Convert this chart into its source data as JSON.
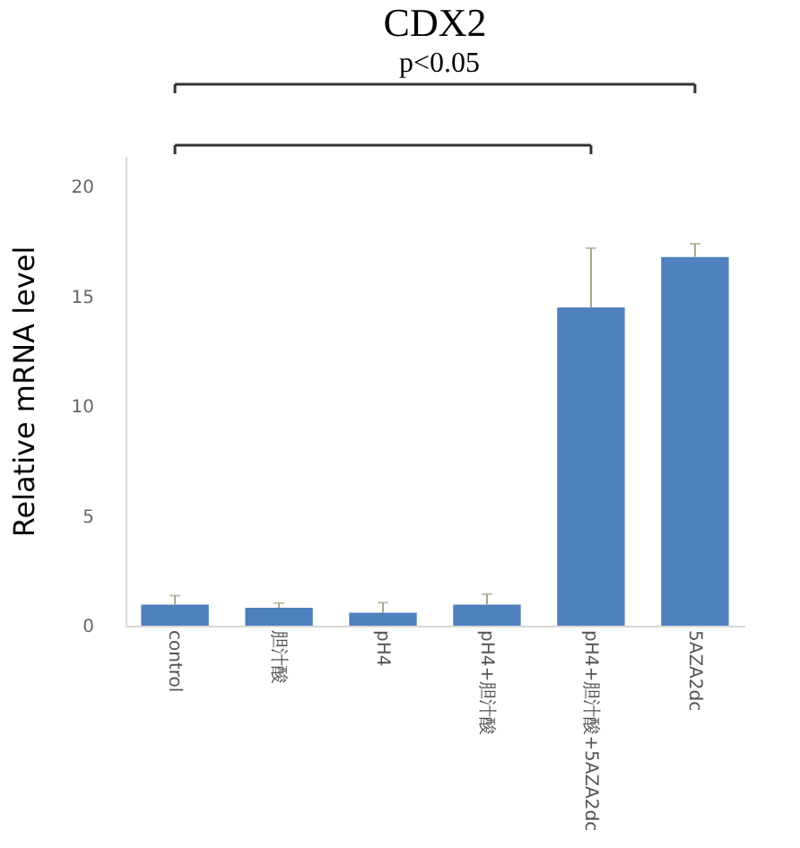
{
  "chart_data": {
    "type": "bar",
    "title": "CDX2",
    "ylabel": "Relative mRNA level",
    "categories": [
      "control",
      "胆汁酸",
      "pH4",
      "pH4+胆汁酸",
      "pH4+胆汁酸+5AZA2dc",
      "5AZA2dc"
    ],
    "values": [
      0.96,
      0.82,
      0.59,
      0.96,
      14.5,
      16.8
    ],
    "errors": [
      [
        0.96,
        1.37
      ],
      [
        0.82,
        1.03
      ],
      [
        0.59,
        1.05
      ],
      [
        0.96,
        1.44
      ],
      [
        14.5,
        17.2
      ],
      [
        16.8,
        17.4
      ]
    ],
    "color": "#4f81bd",
    "ylim": [
      0,
      21.4
    ],
    "yticks": [
      0,
      5,
      10,
      15,
      20
    ],
    "grid": false,
    "annotations": [
      "p<0.05"
    ]
  }
}
